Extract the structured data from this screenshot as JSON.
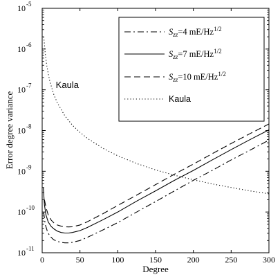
{
  "chart_data": {
    "type": "line",
    "title": "",
    "xlabel": "Degree",
    "ylabel": "Error degree variance",
    "xlim": [
      0,
      300
    ],
    "ylim": [
      1e-11,
      1e-05
    ],
    "yscale": "log",
    "grid": false,
    "legend_position": "top-right",
    "x_ticks": [
      {
        "value": 0,
        "label": "0"
      },
      {
        "value": 50,
        "label": "50"
      },
      {
        "value": 100,
        "label": "100"
      },
      {
        "value": 150,
        "label": "150"
      },
      {
        "value": 200,
        "label": "200"
      },
      {
        "value": 250,
        "label": "250"
      },
      {
        "value": 300,
        "label": "300"
      }
    ],
    "y_ticks": [
      {
        "exp": -11,
        "base": "10",
        "sup": "-11"
      },
      {
        "exp": -10,
        "base": "10",
        "sup": "-10"
      },
      {
        "exp": -9,
        "base": "10",
        "sup": "-9"
      },
      {
        "exp": -8,
        "base": "10",
        "sup": "-8"
      },
      {
        "exp": -7,
        "base": "10",
        "sup": "-7"
      },
      {
        "exp": -6,
        "base": "10",
        "sup": "-6"
      },
      {
        "exp": -5,
        "base": "10",
        "sup": "-5"
      }
    ],
    "series": [
      {
        "key": "szz4",
        "legend_main": "S",
        "legend_sub": "zz",
        "legend_rest": "=4 mE/Hz",
        "legend_sup": "1/2",
        "style": "dashdot",
        "x": [
          2,
          4,
          7,
          10,
          15,
          20,
          25,
          30,
          35,
          40,
          50,
          60,
          80,
          100,
          125,
          150,
          175,
          200,
          225,
          250,
          275,
          300
        ],
        "y": [
          1e-10,
          5e-11,
          3.3e-11,
          2.6e-11,
          2.1e-11,
          1.9e-11,
          1.8e-11,
          1.75e-11,
          1.75e-11,
          1.8e-11,
          2e-11,
          2.4e-11,
          3.6e-11,
          5.5e-11,
          1e-10,
          1.8e-10,
          3.3e-10,
          6e-10,
          1.05e-09,
          1.9e-09,
          3.3e-09,
          5.8e-09
        ]
      },
      {
        "key": "szz7",
        "legend_main": "S",
        "legend_sub": "zz",
        "legend_rest": "=7 mE/Hz",
        "legend_sup": "1/2",
        "style": "solid",
        "x": [
          1.5,
          3,
          5,
          8,
          12,
          16,
          20,
          25,
          30,
          35,
          40,
          50,
          60,
          80,
          100,
          125,
          150,
          175,
          200,
          225,
          250,
          275,
          300
        ],
        "y": [
          4e-10,
          1.5e-10,
          8.5e-11,
          5.7e-11,
          4.4e-11,
          3.8e-11,
          3.4e-11,
          3.15e-11,
          3.05e-11,
          3.05e-11,
          3.15e-11,
          3.5e-11,
          4.2e-11,
          6.4e-11,
          1e-10,
          1.85e-10,
          3.3e-10,
          6e-10,
          1.05e-09,
          1.9e-09,
          3.4e-09,
          6e-09,
          1.04e-08
        ]
      },
      {
        "key": "szz10",
        "legend_main": "S",
        "legend_sub": "zz",
        "legend_rest": "=10 mE/Hz",
        "legend_sup": "1/2",
        "style": "dashed",
        "x": [
          3,
          5,
          8,
          12,
          16,
          20,
          25,
          30,
          35,
          40,
          50,
          60,
          80,
          100,
          125,
          150,
          175,
          200,
          225,
          250,
          275,
          300
        ],
        "y": [
          2e-10,
          1.3e-10,
          8.5e-11,
          6.3e-11,
          5.3e-11,
          4.8e-11,
          4.5e-11,
          4.35e-11,
          4.3e-11,
          4.35e-11,
          4.8e-11,
          5.8e-11,
          9e-11,
          1.45e-10,
          2.6e-10,
          4.7e-10,
          8.5e-10,
          1.5e-09,
          2.7e-09,
          4.8e-09,
          8.4e-09,
          1.45e-08
        ]
      },
      {
        "key": "kaula",
        "legend_main": "Kaula",
        "style": "dotted",
        "x": [
          2,
          3,
          4,
          6,
          8,
          10,
          15,
          20,
          30,
          40,
          50,
          60,
          80,
          100,
          125,
          150,
          175,
          200,
          225,
          250,
          275,
          300
        ],
        "y": [
          2e-06,
          1.3e-06,
          8e-07,
          4e-07,
          2.5e-07,
          1.65e-07,
          8e-08,
          4.8e-08,
          2.3e-08,
          1.35e-08,
          9e-09,
          6.4e-09,
          3.7e-09,
          2.4e-09,
          1.55e-09,
          1.08e-09,
          8e-10,
          6.2e-10,
          4.9e-10,
          4e-10,
          3.3e-10,
          2.8e-10
        ]
      }
    ],
    "annotations": [
      {
        "text": "Kaula",
        "x": 18,
        "y": 1.1e-07
      }
    ]
  }
}
